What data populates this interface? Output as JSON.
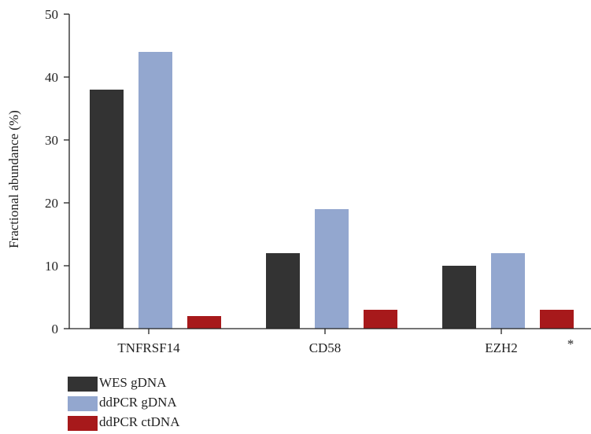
{
  "chart_data": {
    "type": "bar",
    "categories": [
      "TNFRSF14",
      "CD58",
      "EZH2"
    ],
    "series": [
      {
        "name": "WES gDNA",
        "values": [
          38,
          12,
          10
        ],
        "color": "#333333"
      },
      {
        "name": "ddPCR gDNA",
        "values": [
          44,
          19,
          12
        ],
        "color": "#93a7cf"
      },
      {
        "name": "ddPCR ctDNA",
        "values": [
          2,
          3,
          3
        ],
        "color": "#a7191b"
      }
    ],
    "ylabel": "Fractional abundance (%)",
    "xlabel": "",
    "ylim": [
      0,
      50
    ],
    "yticks": [
      0,
      10,
      20,
      30,
      40,
      50
    ],
    "annotations": [
      {
        "category": "EZH2",
        "text": "*"
      }
    ],
    "legend_position": "bottom-left",
    "grid": false
  }
}
